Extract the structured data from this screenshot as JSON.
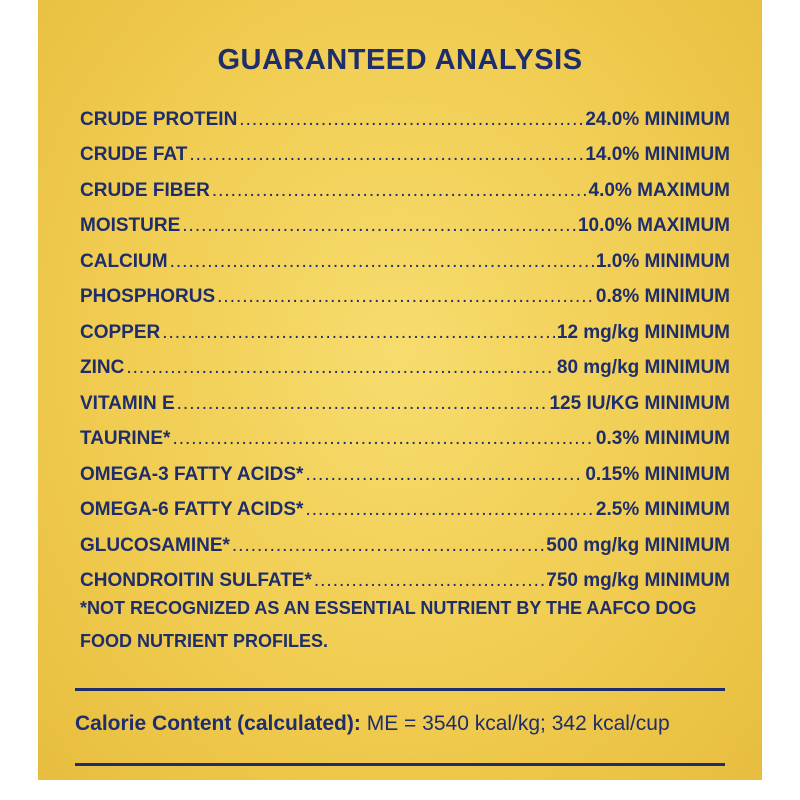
{
  "title": "GUARANTEED ANALYSIS",
  "rows": [
    {
      "name": "CRUDE PROTEIN",
      "value": "24.0% MINIMUM"
    },
    {
      "name": "CRUDE FAT",
      "value": "14.0% MINIMUM"
    },
    {
      "name": "CRUDE FIBER",
      "value": "4.0% MAXIMUM"
    },
    {
      "name": "MOISTURE",
      "value": "10.0% MAXIMUM"
    },
    {
      "name": "CALCIUM",
      "value": "1.0% MINIMUM"
    },
    {
      "name": "PHOSPHORUS",
      "value": "0.8% MINIMUM"
    },
    {
      "name": "COPPER",
      "value": "12 mg/kg MINIMUM"
    },
    {
      "name": "ZINC",
      "value": "80 mg/kg MINIMUM"
    },
    {
      "name": "VITAMIN E",
      "value": "125 IU/KG MINIMUM"
    },
    {
      "name": "TAURINE*",
      "value": "0.3% MINIMUM"
    },
    {
      "name": "OMEGA-3 FATTY ACIDS*",
      "value": "0.15% MINIMUM"
    },
    {
      "name": "OMEGA-6 FATTY ACIDS*",
      "value": "2.5% MINIMUM"
    },
    {
      "name": "GLUCOSAMINE*",
      "value": "500 mg/kg MINIMUM"
    },
    {
      "name": "CHONDROITIN SULFATE*",
      "value": "750 mg/kg MINIMUM"
    }
  ],
  "footnote": [
    "*NOT RECOGNIZED AS AN ESSENTIAL NUTRIENT BY THE AAFCO DOG",
    "FOOD NUTRIENT PROFILES."
  ],
  "calorie": {
    "label": "Calorie Content (calculated):",
    "value": "ME = 3540 kcal/kg; 342 kcal/cup"
  }
}
